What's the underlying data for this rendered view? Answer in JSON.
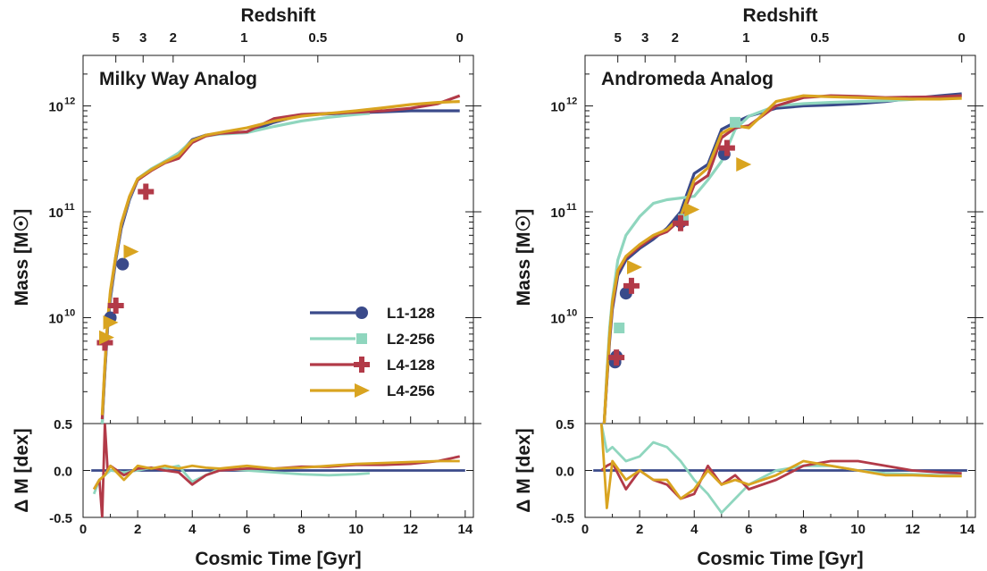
{
  "colors": {
    "L1-128": "#3a4a8a",
    "L2-256": "#8fd6be",
    "L4-128": "#b23a48",
    "L4-256": "#d9a420"
  },
  "legend": [
    {
      "name": "L1-128",
      "marker": "circle"
    },
    {
      "name": "L2-256",
      "marker": "square"
    },
    {
      "name": "L4-128",
      "marker": "plus"
    },
    {
      "name": "L4-256",
      "marker": "triangle-right"
    }
  ],
  "chart_data": [
    {
      "type": "line",
      "title": "Milky Way Analog",
      "xlabel": "Cosmic Time [Gyr]",
      "ylabel": "Mass [M☉]",
      "top_xlabel": "Redshift",
      "xlim": [
        0,
        14.3
      ],
      "ylim": [
        1000000000,
        3000000000000
      ],
      "yscale": "log",
      "residual_ylabel": "Δ M [dex]",
      "residual_ylim": [
        -0.5,
        0.5
      ],
      "redshift_ticks": [
        {
          "label": "5",
          "t": 1.2
        },
        {
          "label": "3",
          "t": 2.2
        },
        {
          "label": "2",
          "t": 3.3
        },
        {
          "label": "1",
          "t": 5.9
        },
        {
          "label": "0.5",
          "t": 8.6
        },
        {
          "label": "0",
          "t": 13.8
        }
      ],
      "xticks": [
        "0",
        "2",
        "4",
        "6",
        "8",
        "10",
        "12",
        "14"
      ],
      "yticks": [
        {
          "label": "10",
          "exp": "10",
          "v": 10000000000
        },
        {
          "label": "10",
          "exp": "11",
          "v": 100000000000
        },
        {
          "label": "10",
          "exp": "12",
          "v": 1000000000000
        }
      ],
      "residual_yticks": [
        "0.5",
        "0.0",
        "-0.5"
      ],
      "show_legend": true,
      "series": [
        {
          "name": "L1-128",
          "x": [
            0.7,
            0.8,
            0.9,
            1.0,
            1.2,
            1.4,
            1.7,
            2.0,
            2.5,
            3.0,
            3.5,
            4.0,
            4.5,
            5.0,
            6.0,
            7.0,
            8.0,
            9.0,
            10.0,
            11.0,
            12.0,
            13.0,
            13.8
          ],
          "y": [
            1000000000,
            3000000000,
            8000000000,
            15000000000,
            35000000000,
            70000000000,
            130000000000,
            200000000000,
            250000000000,
            300000000000,
            350000000000,
            480000000000,
            530000000000,
            550000000000,
            560000000000,
            700000000000,
            820000000000,
            840000000000,
            860000000000,
            880000000000,
            900000000000,
            900000000000,
            900000000000
          ],
          "markers": [
            [
              1.0,
              10000000000
            ],
            [
              1.45,
              32000000000
            ]
          ]
        },
        {
          "name": "L2-256",
          "x": [
            0.7,
            0.8,
            0.9,
            1.0,
            1.2,
            1.4,
            1.7,
            2.0,
            2.5,
            3.0,
            3.5,
            4.0,
            4.5,
            5.0,
            6.0,
            7.0,
            8.0,
            9.0,
            10.0,
            10.5
          ],
          "y": [
            1000000000,
            3200000000,
            8500000000,
            16000000000,
            37000000000,
            75000000000,
            135000000000,
            205000000000,
            255000000000,
            300000000000,
            360000000000,
            470000000000,
            520000000000,
            540000000000,
            560000000000,
            640000000000,
            720000000000,
            780000000000,
            830000000000,
            850000000000
          ],
          "markers": []
        },
        {
          "name": "L4-128",
          "x": [
            0.7,
            0.8,
            0.9,
            1.0,
            1.2,
            1.4,
            1.7,
            2.0,
            2.5,
            3.0,
            3.5,
            4.0,
            4.5,
            5.0,
            6.0,
            7.0,
            8.0,
            9.0,
            10.0,
            11.0,
            12.0,
            13.0,
            13.8
          ],
          "y": [
            1100000000,
            3400000000,
            9000000000,
            17000000000,
            38000000000,
            76000000000,
            138000000000,
            200000000000,
            245000000000,
            290000000000,
            320000000000,
            450000000000,
            520000000000,
            550000000000,
            570000000000,
            760000000000,
            830000000000,
            850000000000,
            870000000000,
            900000000000,
            950000000000,
            1050000000000,
            1250000000000
          ],
          "markers": [
            [
              0.8,
              5800000000
            ],
            [
              1.2,
              13000000000
            ],
            [
              2.3,
              155000000000
            ]
          ]
        },
        {
          "name": "L4-256",
          "x": [
            0.7,
            0.8,
            0.9,
            1.0,
            1.2,
            1.4,
            1.7,
            2.0,
            2.5,
            3.0,
            3.5,
            4.0,
            4.5,
            5.0,
            6.0,
            7.0,
            8.0,
            9.0,
            10.0,
            11.0,
            12.0,
            13.0,
            13.8
          ],
          "y": [
            1200000000,
            3600000000,
            9500000000,
            18000000000,
            39000000000,
            78000000000,
            140000000000,
            205000000000,
            250000000000,
            295000000000,
            340000000000,
            470000000000,
            530000000000,
            560000000000,
            620000000000,
            720000000000,
            800000000000,
            850000000000,
            900000000000,
            960000000000,
            1030000000000,
            1080000000000,
            1100000000000
          ],
          "markers": [
            [
              0.85,
              6500000000
            ],
            [
              1.0,
              9000000000
            ],
            [
              1.75,
              42000000000
            ]
          ]
        }
      ],
      "residuals": [
        {
          "name": "L1-128",
          "x": [
            0.3,
            14.0
          ],
          "y": [
            0.0,
            0.0
          ]
        },
        {
          "name": "L2-256",
          "x": [
            0.4,
            0.6,
            0.8,
            1.0,
            1.5,
            2.0,
            2.5,
            3.0,
            3.5,
            4.0,
            4.5,
            5.0,
            6.0,
            7.0,
            8.0,
            9.0,
            10.0,
            10.5
          ],
          "y": [
            -0.25,
            -0.1,
            -0.05,
            0.0,
            -0.02,
            0.0,
            0.03,
            0.02,
            0.05,
            -0.12,
            -0.05,
            0.02,
            0.0,
            -0.02,
            -0.04,
            -0.05,
            -0.04,
            -0.03
          ]
        },
        {
          "name": "L4-128",
          "x": [
            0.4,
            0.6,
            0.7,
            0.8,
            0.9,
            1.0,
            1.5,
            2.0,
            2.5,
            3.0,
            3.5,
            4.0,
            4.5,
            5.0,
            6.0,
            7.0,
            8.0,
            9.0,
            10.0,
            11.0,
            12.0,
            13.0,
            13.8
          ],
          "y": [
            -0.2,
            -0.1,
            -0.5,
            0.5,
            0.0,
            0.05,
            -0.05,
            0.02,
            0.03,
            0.0,
            -0.02,
            -0.15,
            -0.05,
            0.0,
            0.02,
            0.02,
            0.04,
            0.04,
            0.06,
            0.06,
            0.07,
            0.1,
            0.15
          ]
        },
        {
          "name": "L4-256",
          "x": [
            0.4,
            0.6,
            0.8,
            1.0,
            1.5,
            2.0,
            2.5,
            3.0,
            3.5,
            4.0,
            4.5,
            5.0,
            6.0,
            7.0,
            8.0,
            9.0,
            10.0,
            11.0,
            12.0,
            13.0,
            13.8
          ],
          "y": [
            -0.2,
            -0.1,
            -0.05,
            0.05,
            -0.1,
            0.05,
            0.02,
            0.05,
            0.02,
            0.05,
            0.03,
            0.02,
            0.05,
            0.02,
            0.03,
            0.05,
            0.07,
            0.08,
            0.09,
            0.1,
            0.1
          ]
        }
      ]
    },
    {
      "type": "line",
      "title": "Andromeda Analog",
      "xlabel": "Cosmic Time [Gyr]",
      "ylabel": "Mass [M☉]",
      "top_xlabel": "Redshift",
      "xlim": [
        0,
        14.3
      ],
      "ylim": [
        1000000000,
        3000000000000
      ],
      "yscale": "log",
      "residual_ylabel": "Δ M [dex]",
      "residual_ylim": [
        -0.5,
        0.5
      ],
      "redshift_ticks": [
        {
          "label": "5",
          "t": 1.2
        },
        {
          "label": "3",
          "t": 2.2
        },
        {
          "label": "2",
          "t": 3.3
        },
        {
          "label": "1",
          "t": 5.9
        },
        {
          "label": "0.5",
          "t": 8.6
        },
        {
          "label": "0",
          "t": 13.8
        }
      ],
      "xticks": [
        "0",
        "2",
        "4",
        "6",
        "8",
        "10",
        "12",
        "14"
      ],
      "yticks": [
        {
          "label": "10",
          "exp": "10",
          "v": 10000000000
        },
        {
          "label": "10",
          "exp": "11",
          "v": 100000000000
        },
        {
          "label": "10",
          "exp": "12",
          "v": 1000000000000
        }
      ],
      "residual_yticks": [
        "0.5",
        "0.0",
        "-0.5"
      ],
      "show_legend": false,
      "series": [
        {
          "name": "L1-128",
          "x": [
            0.7,
            0.8,
            0.9,
            1.0,
            1.2,
            1.5,
            2.0,
            2.5,
            3.0,
            3.5,
            4.0,
            4.5,
            5.0,
            5.5,
            6.0,
            7.0,
            8.0,
            9.0,
            10.0,
            11.0,
            12.0,
            13.0,
            13.8
          ],
          "y": [
            1000000000,
            2500000000,
            6000000000,
            12000000000,
            25000000000,
            35000000000,
            45000000000,
            55000000000,
            70000000000,
            100000000000,
            230000000000,
            280000000000,
            600000000000,
            700000000000,
            800000000000,
            950000000000,
            1000000000000,
            1020000000000,
            1050000000000,
            1100000000000,
            1180000000000,
            1250000000000,
            1300000000000
          ],
          "markers": [
            [
              1.1,
              3800000000
            ],
            [
              1.15,
              4300000000
            ],
            [
              1.5,
              17000000000
            ],
            [
              3.5,
              80000000000
            ],
            [
              5.1,
              350000000000
            ]
          ]
        },
        {
          "name": "L2-256",
          "x": [
            0.7,
            0.8,
            0.9,
            1.0,
            1.2,
            1.5,
            2.0,
            2.5,
            3.0,
            3.5,
            4.0,
            4.5,
            5.0,
            5.5,
            6.0,
            7.0,
            8.0,
            9.0,
            10.0,
            11.0,
            12.0,
            13.0,
            13.8
          ],
          "y": [
            1000000000,
            3000000000,
            8000000000,
            15000000000,
            35000000000,
            60000000000,
            90000000000,
            120000000000,
            130000000000,
            135000000000,
            140000000000,
            200000000000,
            300000000000,
            600000000000,
            800000000000,
            1000000000000,
            1050000000000,
            1080000000000,
            1100000000000,
            1120000000000,
            1150000000000,
            1200000000000,
            1250000000000
          ],
          "markers": [
            [
              1.25,
              8000000000
            ],
            [
              3.6,
              85000000000
            ],
            [
              5.5,
              700000000000
            ]
          ]
        },
        {
          "name": "L4-128",
          "x": [
            0.7,
            0.8,
            0.9,
            1.0,
            1.2,
            1.5,
            2.0,
            2.5,
            3.0,
            3.5,
            4.0,
            4.5,
            5.0,
            5.5,
            6.0,
            7.0,
            8.0,
            9.0,
            10.0,
            11.0,
            12.0,
            13.0,
            13.8
          ],
          "y": [
            1000000000,
            2600000000,
            6500000000,
            13000000000,
            27000000000,
            37000000000,
            47000000000,
            58000000000,
            65000000000,
            85000000000,
            180000000000,
            220000000000,
            500000000000,
            620000000000,
            650000000000,
            1000000000000,
            1200000000000,
            1250000000000,
            1230000000000,
            1200000000000,
            1210000000000,
            1220000000000,
            1250000000000
          ],
          "markers": [
            [
              1.15,
              4200000000
            ],
            [
              1.7,
              20000000000
            ],
            [
              3.5,
              78000000000
            ],
            [
              5.2,
              400000000000
            ]
          ]
        },
        {
          "name": "L4-256",
          "x": [
            0.7,
            0.8,
            0.9,
            1.0,
            1.2,
            1.5,
            2.0,
            2.5,
            3.0,
            3.5,
            4.0,
            4.5,
            5.0,
            5.5,
            6.0,
            7.0,
            8.0,
            9.0,
            10.0,
            11.0,
            12.0,
            13.0,
            13.8
          ],
          "y": [
            1000000000,
            2700000000,
            6800000000,
            14000000000,
            28000000000,
            38000000000,
            49000000000,
            60000000000,
            68000000000,
            90000000000,
            200000000000,
            260000000000,
            550000000000,
            650000000000,
            620000000000,
            1100000000000,
            1250000000000,
            1220000000000,
            1200000000000,
            1180000000000,
            1160000000000,
            1160000000000,
            1180000000000
          ],
          "markers": [
            [
              1.8,
              30000000000
            ],
            [
              3.9,
              105000000000
            ],
            [
              5.8,
              280000000000
            ]
          ]
        }
      ],
      "residuals": [
        {
          "name": "L1-128",
          "x": [
            0.3,
            14.0
          ],
          "y": [
            0.0,
            0.0
          ]
        },
        {
          "name": "L2-256",
          "x": [
            0.6,
            0.8,
            1.0,
            1.5,
            2.0,
            2.5,
            3.0,
            3.5,
            4.0,
            4.5,
            5.0,
            5.5,
            6.0,
            7.0,
            8.0,
            9.0,
            10.0,
            11.0,
            12.0,
            13.0,
            13.8
          ],
          "y": [
            0.5,
            0.2,
            0.25,
            0.1,
            0.15,
            0.3,
            0.25,
            0.1,
            -0.1,
            -0.25,
            -0.45,
            -0.3,
            -0.15,
            0.0,
            0.05,
            0.05,
            0.0,
            -0.03,
            -0.04,
            -0.05,
            -0.05
          ]
        },
        {
          "name": "L4-128",
          "x": [
            0.6,
            0.8,
            1.0,
            1.5,
            2.0,
            2.5,
            3.0,
            3.5,
            4.0,
            4.5,
            5.0,
            5.5,
            6.0,
            7.0,
            8.0,
            9.0,
            10.0,
            11.0,
            12.0,
            13.0,
            13.8
          ],
          "y": [
            0.0,
            0.05,
            0.08,
            -0.2,
            0.0,
            -0.1,
            -0.15,
            -0.3,
            -0.25,
            0.05,
            -0.15,
            -0.05,
            -0.2,
            -0.1,
            0.05,
            0.1,
            0.1,
            0.05,
            0.0,
            -0.02,
            -0.03
          ]
        },
        {
          "name": "L4-256",
          "x": [
            0.6,
            0.8,
            1.0,
            1.5,
            2.0,
            2.5,
            3.0,
            3.5,
            4.0,
            4.5,
            5.0,
            5.5,
            6.0,
            7.0,
            8.0,
            9.0,
            10.0,
            11.0,
            12.0,
            13.0,
            13.8
          ],
          "y": [
            0.5,
            -0.4,
            0.1,
            -0.1,
            0.0,
            -0.1,
            -0.1,
            -0.3,
            -0.2,
            0.0,
            -0.15,
            -0.1,
            -0.15,
            -0.05,
            0.1,
            0.05,
            0.0,
            -0.05,
            -0.05,
            -0.06,
            -0.06
          ]
        }
      ]
    }
  ]
}
